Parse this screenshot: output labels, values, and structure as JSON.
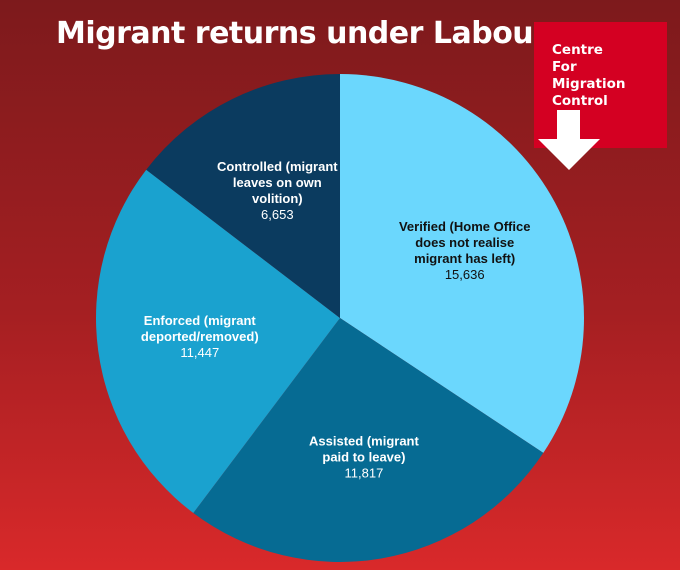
{
  "title": "Migrant returns under Labour",
  "logo": {
    "text": "Centre\n For\nMigration\nControl",
    "icon": "down-arrow-icon"
  },
  "chart_data": {
    "type": "pie",
    "title": "Migrant returns under Labour",
    "start": "top",
    "direction": "clockwise",
    "slices": [
      {
        "label": [
          "Verified (Home Office",
          "does not realise",
          "migrant has left)"
        ],
        "value": 15636,
        "value_text": "15,636",
        "color": "#6bd7fd",
        "text_color": "#111111"
      },
      {
        "label": [
          "Assisted (migrant",
          "paid to leave)"
        ],
        "value": 11817,
        "value_text": "11,817",
        "color": "#066b93",
        "text_color": "#ffffff"
      },
      {
        "label": [
          "Enforced (migrant",
          "deported/removed)"
        ],
        "value": 11447,
        "value_text": "11,447",
        "color": "#1aa2cf",
        "text_color": "#ffffff"
      },
      {
        "label": [
          "Controlled (migrant",
          "leaves on own",
          "volition)"
        ],
        "value": 6653,
        "value_text": "6,653",
        "color": "#0b3b5f",
        "text_color": "#ffffff"
      }
    ]
  }
}
